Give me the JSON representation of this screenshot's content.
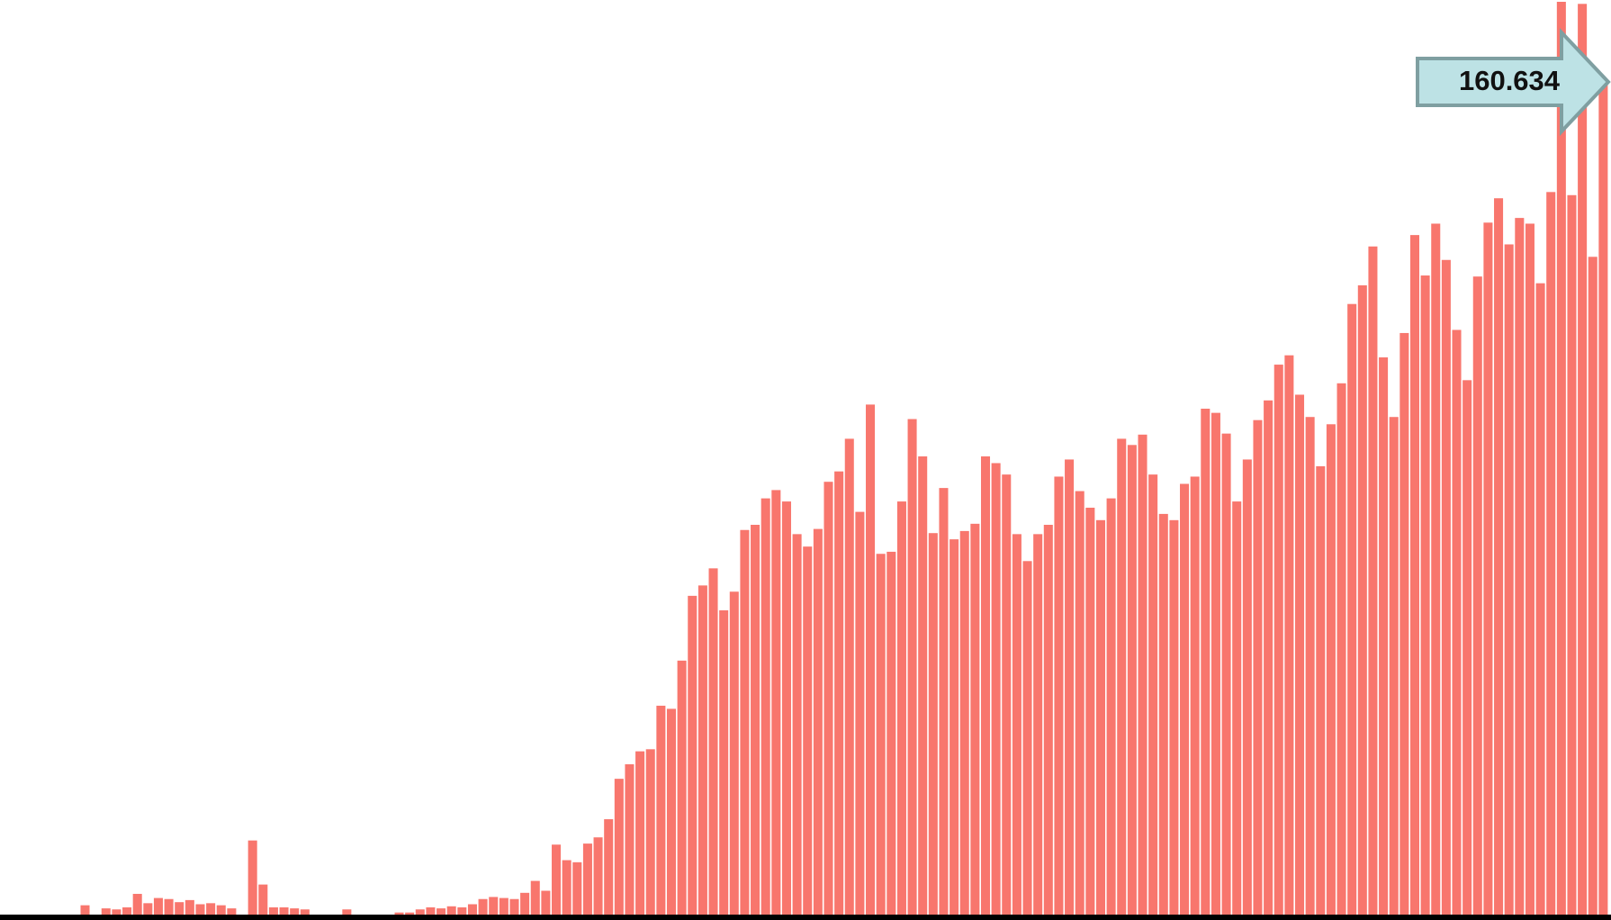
{
  "chart_data": {
    "type": "bar",
    "color": "#f8766d",
    "values": [
      1.8,
      0,
      1.2,
      1.0,
      1.4,
      4.0,
      2.2,
      3.2,
      3.0,
      2.4,
      2.8,
      2.0,
      2.2,
      1.8,
      1.2,
      0,
      14.3,
      5.8,
      1.4,
      1.4,
      1.2,
      1.0,
      0,
      0,
      0,
      1.0,
      0,
      0,
      0,
      0,
      0.4,
      0.4,
      1.0,
      1.4,
      1.2,
      1.6,
      1.4,
      2.0,
      3.0,
      3.4,
      3.2,
      3.0,
      4.2,
      6.5,
      4.6,
      13.5,
      10.5,
      10.1,
      13.7,
      14.9,
      18.4,
      26.2,
      29.0,
      31.5,
      31.9,
      40.3,
      39.7,
      49.0,
      61.5,
      63.5,
      66.8,
      58.7,
      62.3,
      74.2,
      75.2,
      80.3,
      81.9,
      79.7,
      73.4,
      71.0,
      74.4,
      83.5,
      85.5,
      91.8,
      77.7,
      98.4,
      69.6,
      70.0,
      79.7,
      95.6,
      88.4,
      73.6,
      82.3,
      72.4,
      74.0,
      75.4,
      88.4,
      87.1,
      84.9,
      73.4,
      68.2,
      73.4,
      75.2,
      84.5,
      87.8,
      81.7,
      78.5,
      76.1,
      80.3,
      91.8,
      90.6,
      92.6,
      84.9,
      77.3,
      76.1,
      83.1,
      84.5,
      97.6,
      96.8,
      92.8,
      79.7,
      87.8,
      95.4,
      99.2,
      106.1,
      107.9,
      100.3,
      96.0,
      86.5,
      94.6,
      102.5,
      117.8,
      121.4,
      128.9,
      107.5,
      96.0,
      112.2,
      131.1,
      123.3,
      133.3,
      126.3,
      112.8,
      103.1,
      123.1,
      133.5,
      138.2,
      129.3,
      134.4,
      133.3,
      121.8,
      139.4,
      176.1,
      138.8,
      175.7,
      126.9,
      160.634
    ]
  }
}
